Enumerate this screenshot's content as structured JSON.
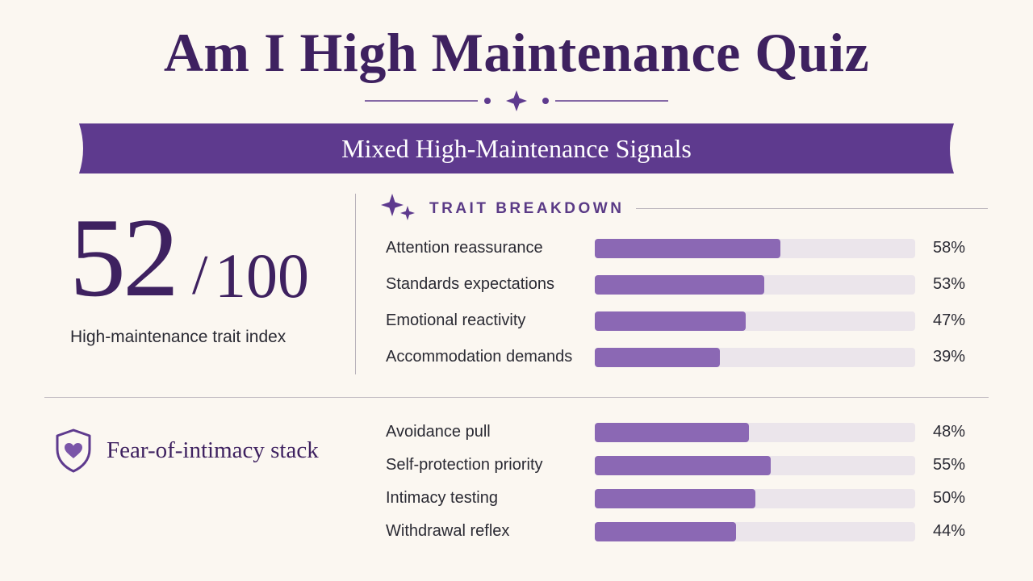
{
  "title": "Am I High Maintenance Quiz",
  "banner": {
    "text": "Mixed High-Maintenance Signals"
  },
  "score": {
    "value": "52",
    "slash": "/",
    "total": "100",
    "caption": "High-maintenance trait index"
  },
  "breakdown": {
    "title": "TRAIT BREAKDOWN",
    "icon": "sparkle-icon",
    "items": [
      {
        "label": "Attention reassurance",
        "value": 58,
        "value_text": "58%"
      },
      {
        "label": "Standards expectations",
        "value": 53,
        "value_text": "53%"
      },
      {
        "label": "Emotional reactivity",
        "value": 47,
        "value_text": "47%"
      },
      {
        "label": "Accommodation demands",
        "value": 39,
        "value_text": "39%"
      }
    ]
  },
  "intimacy": {
    "title": "Fear-of-intimacy stack",
    "icon": "shield-heart-icon",
    "items": [
      {
        "label": "Avoidance pull",
        "value": 48,
        "value_text": "48%"
      },
      {
        "label": "Self-protection priority",
        "value": 55,
        "value_text": "55%"
      },
      {
        "label": "Intimacy testing",
        "value": 50,
        "value_text": "50%"
      },
      {
        "label": "Withdrawal reflex",
        "value": 44,
        "value_text": "44%"
      }
    ]
  },
  "colors": {
    "accent": "#5e3a8e",
    "bar_fill": "#8b68b4",
    "bar_track": "#ebe5eb",
    "title": "#3e2160",
    "background": "#fbf7f1"
  }
}
